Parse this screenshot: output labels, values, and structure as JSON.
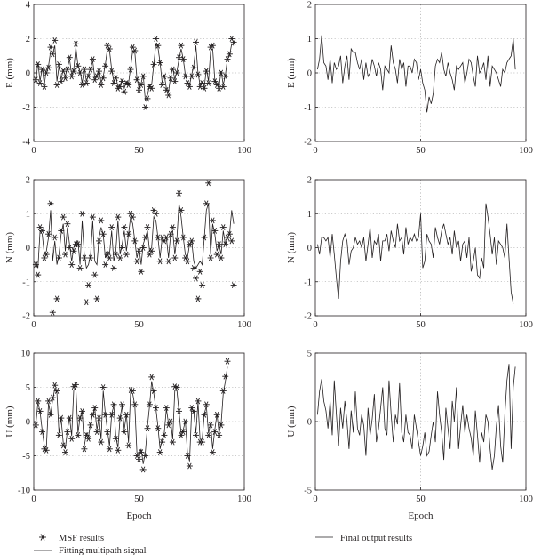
{
  "legend": {
    "msf_label": "MSF results",
    "fit_label": "Fitting multipath signal",
    "final_label": "Final output results"
  },
  "chart_data": [
    {
      "id": "E-left",
      "type": "scatter+line",
      "ylabel": "E (mm)",
      "xlabel": "",
      "xlim": [
        0,
        100
      ],
      "ylim": [
        -4,
        4
      ],
      "xticks": [
        0,
        50,
        100
      ],
      "yticks": [
        -4,
        -2,
        0,
        2,
        4
      ],
      "series": [
        {
          "kind": "markers",
          "values": [
            -0.4,
            0.5,
            -0.6,
            0.2,
            -0.8,
            0.0,
            0.3,
            1.5,
            1.1,
            1.9,
            -0.7,
            0.5,
            -0.5,
            0.1,
            -0.3,
            0.2,
            0.9,
            -0.2,
            0.1,
            1.7,
            0.4,
            0.0,
            -0.7,
            0.2,
            -0.6,
            -0.2,
            0.2,
            0.8,
            -0.4,
            -0.2,
            0.1,
            -0.7,
            -0.3,
            0.4,
            1.6,
            1.4,
            0.1,
            -0.6,
            -0.3,
            -0.9,
            -0.8,
            -0.5,
            -1.1,
            -0.6,
            -0.7,
            0.2,
            1.5,
            1.3,
            -0.4,
            -1.0,
            -0.7,
            -0.2,
            -2.0,
            -1.5,
            -0.8,
            -0.9,
            0.5,
            2.0,
            1.6,
            0.6,
            -0.7,
            -0.2,
            -1.0,
            -1.3,
            -0.3,
            0.2,
            -0.5,
            0.0,
            0.9,
            1.6,
            0.8,
            -0.2,
            -0.6,
            -0.8,
            -0.2,
            0.3,
            1.8,
            -0.1,
            -0.8,
            -0.6,
            -0.9,
            0.1,
            -0.6,
            1.5,
            1.6,
            -0.5,
            -0.7,
            -0.9,
            0.0,
            -0.8,
            -0.2,
            0.8,
            1.1,
            2.0,
            1.8
          ]
        },
        {
          "kind": "line",
          "values": [
            -0.5,
            0.6,
            -0.5,
            0.3,
            -0.7,
            0.2,
            0.4,
            1.3,
            1.1,
            1.6,
            -0.5,
            0.4,
            -0.4,
            0.2,
            -0.2,
            0.3,
            0.8,
            -0.1,
            0.2,
            1.5,
            0.4,
            0.1,
            -0.6,
            0.3,
            -0.5,
            -0.1,
            0.3,
            0.7,
            -0.3,
            -0.1,
            0.2,
            -0.6,
            -0.2,
            0.5,
            1.4,
            1.3,
            0.2,
            -0.5,
            -0.2,
            -0.8,
            -0.7,
            -0.4,
            -0.9,
            -0.5,
            -0.6,
            0.3,
            1.3,
            1.2,
            -0.3,
            -0.9,
            -0.6,
            -0.1,
            -1.6,
            -1.3,
            -0.7,
            -0.7,
            0.5,
            1.7,
            1.5,
            0.6,
            -0.6,
            -0.1,
            -0.9,
            -1.1,
            -0.2,
            0.3,
            -0.4,
            0.1,
            0.8,
            1.4,
            0.8,
            -0.1,
            -0.5,
            -0.7,
            -0.1,
            0.4,
            1.6,
            0.0,
            -0.7,
            -0.5,
            -0.8,
            0.2,
            -0.5,
            1.3,
            1.4,
            -0.4,
            -0.6,
            -0.8,
            0.1,
            -0.7,
            -0.1,
            0.8,
            1.0,
            1.7,
            1.6
          ]
        }
      ]
    },
    {
      "id": "E-right",
      "type": "line",
      "ylabel": "E (mm)",
      "xlabel": "",
      "xlim": [
        0,
        100
      ],
      "ylim": [
        -2,
        2
      ],
      "xticks": [
        0,
        50,
        100
      ],
      "yticks": [
        -2,
        -1,
        0,
        1,
        2
      ],
      "series": [
        {
          "kind": "line",
          "values": [
            0.1,
            0.4,
            1.1,
            0.3,
            0.2,
            -0.2,
            0.4,
            -0.3,
            0.3,
            0.1,
            0.2,
            0.5,
            -0.3,
            0.2,
            0.5,
            -0.2,
            0.7,
            0.6,
            0.6,
            0.3,
            0.1,
            0.4,
            -0.2,
            0.3,
            -0.1,
            0.0,
            0.4,
            0.2,
            -0.1,
            0.3,
            0.1,
            -0.5,
            0.2,
            0.1,
            0.0,
            0.8,
            0.3,
            0.1,
            -0.3,
            0.4,
            0.1,
            0.3,
            -0.4,
            0.2,
            0.2,
            0.0,
            0.4,
            0.3,
            -0.2,
            0.1,
            -0.3,
            -0.5,
            -1.15,
            -0.7,
            -0.9,
            -0.6,
            0.2,
            0.4,
            0.3,
            0.6,
            0.1,
            -0.1,
            0.3,
            0.0,
            -0.2,
            -0.5,
            0.2,
            0.1,
            0.2,
            0.3,
            -0.3,
            0.0,
            0.4,
            0.3,
            -0.1,
            -0.4,
            0.5,
            0.0,
            0.1,
            0.3,
            -0.2,
            0.5,
            -0.4,
            0.2,
            0.1,
            0.0,
            -0.2,
            -0.4,
            0.1,
            0.0,
            0.3,
            0.4,
            0.5,
            1.0,
            0.1
          ]
        }
      ]
    },
    {
      "id": "N-left",
      "type": "scatter+line",
      "ylabel": "N (mm)",
      "xlabel": "",
      "xlim": [
        0,
        100
      ],
      "ylim": [
        -2,
        2
      ],
      "xticks": [
        0,
        50,
        100
      ],
      "yticks": [
        -2,
        -1,
        0,
        1,
        2
      ],
      "series": [
        {
          "kind": "markers",
          "values": [
            -0.5,
            -0.8,
            0.6,
            0.5,
            -0.3,
            -0.2,
            0.4,
            1.3,
            -1.9,
            0.3,
            -1.5,
            -0.3,
            0.5,
            0.9,
            -0.2,
            0.7,
            0.0,
            -0.5,
            -0.1,
            0.1,
            0.1,
            -0.6,
            1.0,
            -0.3,
            -1.6,
            -1.1,
            -0.3,
            0.9,
            -0.8,
            -1.5,
            0.2,
            0.8,
            0.4,
            -0.5,
            -0.2,
            -0.3,
            0.6,
            -0.6,
            -0.2,
            0.9,
            -0.3,
            0.0,
            0.6,
            -0.2,
            0.4,
            1.0,
            0.9,
            0.2,
            -0.4,
            -0.1,
            -0.7,
            0.0,
            0.3,
            0.6,
            -0.2,
            -0.1,
            1.1,
            1.0,
            0.3,
            -0.4,
            0.3,
            0.2,
            0.3,
            -0.4,
            0.4,
            0.6,
            -0.3,
            0.2,
            1.6,
            1.1,
            0.3,
            -0.3,
            -0.4,
            0.1,
            0.2,
            -0.6,
            -0.9,
            -1.5,
            -0.7,
            -1.1,
            0.3,
            1.3,
            1.9,
            -0.3,
            0.8,
            0.5,
            -0.2,
            0.1,
            -0.3,
            0.6,
            0.1,
            0.3,
            0.4,
            0.2,
            -1.1
          ]
        },
        {
          "kind": "line",
          "values": [
            -0.4,
            -0.6,
            0.5,
            0.4,
            -0.2,
            -0.1,
            0.3,
            1.1,
            -0.4,
            0.2,
            -0.5,
            -0.2,
            0.4,
            0.7,
            -0.1,
            0.6,
            0.1,
            -0.4,
            0.0,
            0.2,
            0.2,
            -0.5,
            0.8,
            -0.2,
            -0.6,
            -0.5,
            -0.2,
            0.8,
            -0.4,
            -0.5,
            0.3,
            0.6,
            0.4,
            -0.3,
            -0.1,
            -0.2,
            0.5,
            -0.4,
            -0.1,
            0.8,
            -0.2,
            0.1,
            0.5,
            -0.1,
            0.4,
            0.9,
            0.7,
            0.2,
            -0.3,
            0.0,
            -0.5,
            0.1,
            0.3,
            0.5,
            -0.1,
            0.0,
            0.9,
            0.8,
            0.3,
            -0.3,
            0.3,
            0.2,
            0.3,
            -0.3,
            0.4,
            0.5,
            -0.2,
            0.3,
            1.3,
            0.9,
            0.3,
            -0.2,
            -0.3,
            0.1,
            0.2,
            -0.4,
            -0.6,
            -0.5,
            -0.4,
            -0.5,
            0.3,
            1.1,
            1.3,
            -0.2,
            0.7,
            0.4,
            -0.1,
            0.1,
            -0.2,
            0.5,
            0.1,
            0.3,
            0.4,
            1.1,
            0.7
          ]
        }
      ]
    },
    {
      "id": "N-right",
      "type": "line",
      "ylabel": "N (mm)",
      "xlabel": "",
      "xlim": [
        0,
        100
      ],
      "ylim": [
        -2,
        2
      ],
      "xticks": [
        0,
        50,
        100
      ],
      "yticks": [
        -2,
        -1,
        0,
        1,
        2
      ],
      "series": [
        {
          "kind": "line",
          "values": [
            0.1,
            -0.2,
            0.3,
            0.3,
            0.2,
            0.3,
            -0.3,
            0.4,
            -0.2,
            -0.9,
            -1.5,
            -0.4,
            0.2,
            0.4,
            0.2,
            -0.5,
            -0.1,
            0.0,
            0.3,
            0.1,
            0.2,
            0.0,
            0.3,
            -0.4,
            0.1,
            0.6,
            -0.3,
            0.2,
            0.1,
            0.4,
            -0.4,
            0.2,
            0.2,
            0.4,
            -0.1,
            0.5,
            0.2,
            0.0,
            0.7,
            0.2,
            0.3,
            -0.2,
            0.6,
            0.1,
            0.3,
            0.2,
            0.4,
            0.2,
            0.3,
            1.0,
            -0.6,
            -0.4,
            0.4,
            0.2,
            0.1,
            -0.3,
            0.6,
            0.3,
            0.1,
            0.5,
            0.7,
            0.4,
            0.1,
            0.3,
            -0.2,
            0.5,
            0.0,
            0.2,
            -0.4,
            0.1,
            0.2,
            -0.3,
            0.3,
            -0.7,
            -0.4,
            0.0,
            -0.8,
            -0.9,
            -0.3,
            -0.6,
            1.3,
            0.9,
            0.4,
            -0.2,
            0.3,
            -0.5,
            0.2,
            0.1,
            0.0,
            -0.3,
            0.7,
            -0.3,
            -1.3,
            -1.65
          ]
        }
      ]
    },
    {
      "id": "U-left",
      "type": "scatter+line",
      "ylabel": "U (mm)",
      "xlabel": "Epoch",
      "xlim": [
        0,
        100
      ],
      "ylim": [
        -10,
        10
      ],
      "xticks": [
        0,
        50,
        100
      ],
      "yticks": [
        -10,
        -5,
        0,
        5,
        10
      ],
      "series": [
        {
          "kind": "markers",
          "values": [
            -0.5,
            3.0,
            1.5,
            -1.5,
            -4.0,
            -4.2,
            3.0,
            1.0,
            3.5,
            5.3,
            4.5,
            -2.0,
            0.5,
            -3.5,
            -4.5,
            -1.5,
            0.5,
            -2.5,
            5.1,
            5.4,
            -2.0,
            0.5,
            1.5,
            -4.0,
            -2.0,
            -2.5,
            -0.5,
            1.0,
            2.0,
            -1.5,
            0.5,
            -3.0,
            5.0,
            1.0,
            -1.5,
            -4.0,
            1.0,
            2.5,
            -2.5,
            -4.2,
            0.5,
            2.5,
            -1.5,
            1.0,
            -3.5,
            4.6,
            4.5,
            2.5,
            -5.0,
            -5.5,
            -4.5,
            -7.0,
            -5.0,
            -1.0,
            2.5,
            6.5,
            4.5,
            2.0,
            -1.0,
            -4.5,
            -3.0,
            -2.0,
            2.0,
            -0.5,
            0.0,
            -3.0,
            5.1,
            5.0,
            1.5,
            -2.0,
            -1.5,
            0.0,
            -5.0,
            -6.5,
            2.0,
            1.5,
            -2.0,
            3.0,
            -3.0,
            -3.0,
            1.0,
            2.5,
            -2.0,
            -0.5,
            -4.5,
            -1.5,
            1.0,
            -2.0,
            -0.5,
            4.5,
            6.6,
            8.8
          ]
        },
        {
          "kind": "line",
          "values": [
            -0.3,
            2.8,
            1.4,
            -1.3,
            -3.5,
            -3.8,
            2.7,
            1.0,
            3.2,
            4.8,
            4.1,
            -1.7,
            0.5,
            -3.1,
            -4.0,
            -1.2,
            0.6,
            -2.1,
            4.6,
            4.9,
            -1.7,
            0.6,
            1.4,
            -3.6,
            -1.7,
            -2.2,
            -0.3,
            1.1,
            1.9,
            -1.2,
            0.6,
            -2.6,
            4.5,
            1.1,
            -1.2,
            -3.6,
            1.1,
            2.3,
            -2.2,
            -3.8,
            0.6,
            2.3,
            -1.2,
            1.1,
            -3.1,
            4.2,
            4.1,
            2.3,
            -4.5,
            -5.0,
            -4.0,
            -6.2,
            -4.5,
            -0.7,
            2.3,
            5.9,
            4.1,
            1.9,
            -0.7,
            -4.0,
            -2.6,
            -1.7,
            1.9,
            -0.3,
            0.1,
            -2.6,
            4.6,
            4.5,
            1.4,
            -1.7,
            -1.2,
            0.1,
            -4.5,
            -5.8,
            1.9,
            1.4,
            -1.7,
            2.8,
            -2.6,
            -2.6,
            1.1,
            2.3,
            -1.7,
            -0.3,
            -4.0,
            -1.2,
            1.1,
            -1.7,
            -0.3,
            4.1,
            5.9,
            8.0
          ]
        }
      ]
    },
    {
      "id": "U-right",
      "type": "line",
      "ylabel": "U (mm)",
      "xlabel": "Epoch",
      "xlim": [
        0,
        100
      ],
      "ylim": [
        -5,
        5
      ],
      "xticks": [
        0,
        50,
        100
      ],
      "yticks": [
        -5,
        0,
        5
      ],
      "series": [
        {
          "kind": "line",
          "values": [
            0.5,
            2.2,
            3.1,
            1.5,
            0.8,
            -0.5,
            1.5,
            -1.0,
            3.0,
            0.5,
            -1.8,
            1.0,
            -0.5,
            1.5,
            0.0,
            -2.0,
            0.8,
            -0.8,
            2.2,
            -0.5,
            -1.0,
            0.5,
            -0.3,
            -2.5,
            1.0,
            -1.0,
            0.2,
            2.0,
            -1.5,
            -0.5,
            1.0,
            2.5,
            -0.5,
            -1.0,
            3.0,
            0.5,
            -1.5,
            0.5,
            -0.2,
            2.8,
            -0.8,
            -1.5,
            0.5,
            -0.8,
            -1.0,
            -2.0,
            0.5,
            -0.5,
            -1.5,
            -2.5,
            -1.8,
            -0.8,
            -2.5,
            -2.2,
            -1.0,
            0.0,
            -1.5,
            2.2,
            0.5,
            -0.8,
            -2.8,
            1.0,
            -0.5,
            -2.0,
            1.5,
            0.0,
            2.5,
            -2.0,
            -0.3,
            1.2,
            -0.8,
            0.5,
            -0.5,
            -1.2,
            -2.5,
            0.8,
            -1.0,
            -3.0,
            -0.8,
            -1.5,
            0.5,
            0.0,
            -2.0,
            -3.5,
            -2.5,
            -0.3,
            1.2,
            -1.8,
            -3.0,
            0.5,
            3.0,
            4.2,
            -2.0,
            2.5,
            4.0
          ]
        }
      ]
    }
  ]
}
